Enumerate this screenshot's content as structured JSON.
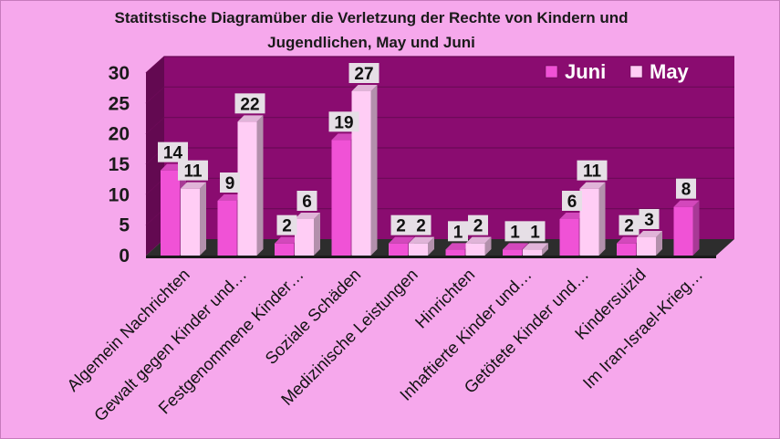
{
  "chart_data": {
    "type": "bar",
    "title_lines": [
      "Statitstische Diagramüber die Verletzung der Rechte von Kindern und",
      "Jugendlichen,  May und Juni"
    ],
    "categories": [
      "Algemein Nachrichten",
      "Gewalt gegen Kinder und…",
      "Festgenommene Kinder…",
      "Soziale Schäden",
      "Medizinische Leistungen",
      "Hinrichten",
      "Inhaftierte Kinder und…",
      "Getötete Kinder und…",
      "Kindersuizid",
      "Im Iran-Israel-Krieg…"
    ],
    "series": [
      {
        "name": "Juni",
        "values": [
          14,
          9,
          2,
          19,
          2,
          1,
          1,
          6,
          2,
          8
        ]
      },
      {
        "name": "May",
        "values": [
          11,
          22,
          6,
          27,
          2,
          2,
          1,
          11,
          3,
          null
        ]
      }
    ],
    "y_ticks": [
      0,
      5,
      10,
      15,
      20,
      25,
      30
    ],
    "ylim": [
      0,
      30
    ],
    "grid": true,
    "legend_position": "top-right",
    "colors": {
      "background": "#f6a8ec",
      "plot_wall": "#8a0c70",
      "floor": "#2d2d2d",
      "juni": "#f052d6",
      "may": "#ffcdf5",
      "label_box": "#e6dfe6"
    }
  }
}
